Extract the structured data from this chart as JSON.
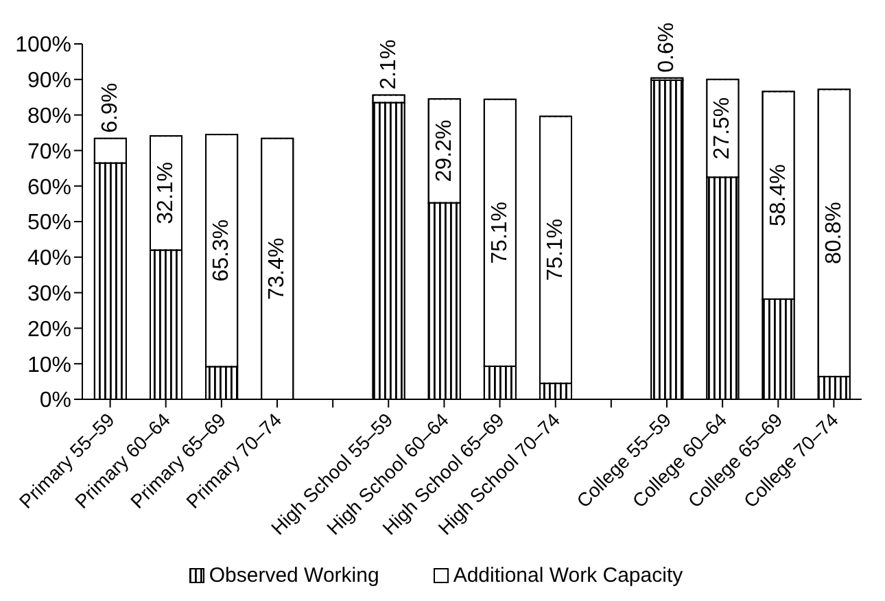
{
  "chart_data": {
    "type": "bar",
    "stacked": true,
    "categories": [
      "Primary 55–59",
      "Primary 60–64",
      "Primary 65–69",
      "Primary 70–74",
      null,
      "High School 55–59",
      "High School 60–64",
      "High School 65–69",
      "High School 70–74",
      null,
      "College 55–59",
      "College 60–64",
      "College 65–69",
      "College 70–74"
    ],
    "series": [
      {
        "name": "Observed Working",
        "color": "#000000",
        "values": [
          66.5,
          42,
          9.2,
          0,
          null,
          83.5,
          55.3,
          9.3,
          4.5,
          null,
          89.8,
          62.5,
          28.2,
          6.4
        ]
      },
      {
        "name": "Additional Work Capacity",
        "color": "#ffffff",
        "values": [
          6.9,
          32.1,
          65.3,
          73.4,
          null,
          2.1,
          29.2,
          75.1,
          75.1,
          null,
          0.6,
          27.5,
          58.4,
          80.8
        ],
        "value_labels": [
          "6.9%",
          "32.1%",
          "65.3%",
          "73.4%",
          null,
          "2.1%",
          "29.2%",
          "75.1%",
          "75.1%",
          null,
          "0.6%",
          "27.5%",
          "58.4%",
          "80.8%"
        ]
      }
    ],
    "ylim": [
      0,
      100
    ],
    "yticks": [
      {
        "value": 0,
        "label": "0%"
      },
      {
        "value": 10,
        "label": "10%"
      },
      {
        "value": 20,
        "label": "20%"
      },
      {
        "value": 30,
        "label": "30%"
      },
      {
        "value": 40,
        "label": "40%"
      },
      {
        "value": 50,
        "label": "50%"
      },
      {
        "value": 60,
        "label": "60%"
      },
      {
        "value": 70,
        "label": "70%"
      },
      {
        "value": 80,
        "label": "80%"
      },
      {
        "value": 90,
        "label": "90%"
      },
      {
        "value": 100,
        "label": "100%"
      }
    ],
    "grid": false,
    "legend": "bottom"
  }
}
